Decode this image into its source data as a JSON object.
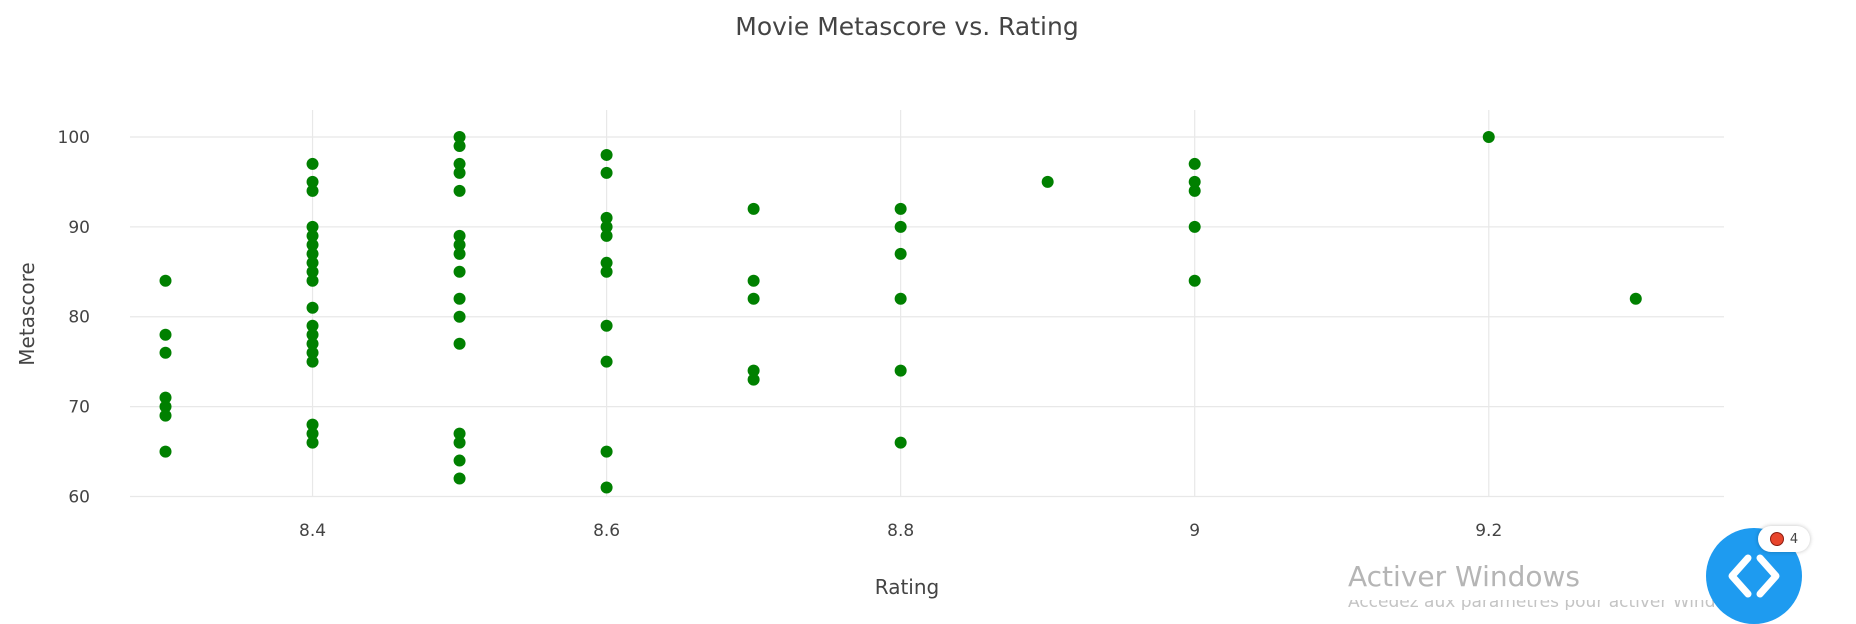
{
  "chart_data": {
    "type": "scatter",
    "title": "Movie Metascore vs. Rating",
    "xlabel": "Rating",
    "ylabel": "Metascore",
    "xlim": [
      8.25,
      9.36
    ],
    "ylim": [
      58.5,
      103
    ],
    "x_ticks": [
      8.4,
      8.6,
      8.8,
      9,
      9.2
    ],
    "x_tick_labels": [
      "8.4",
      "8.6",
      "8.8",
      "9",
      "9.2"
    ],
    "y_ticks": [
      60,
      70,
      80,
      90,
      100
    ],
    "y_tick_labels": [
      "60",
      "70",
      "80",
      "90",
      "100"
    ],
    "grid": true,
    "marker_color": "#008000",
    "points": [
      {
        "x": 8.3,
        "y": 84
      },
      {
        "x": 8.3,
        "y": 78
      },
      {
        "x": 8.3,
        "y": 76
      },
      {
        "x": 8.3,
        "y": 71
      },
      {
        "x": 8.3,
        "y": 70
      },
      {
        "x": 8.3,
        "y": 69
      },
      {
        "x": 8.3,
        "y": 65
      },
      {
        "x": 8.4,
        "y": 97
      },
      {
        "x": 8.4,
        "y": 95
      },
      {
        "x": 8.4,
        "y": 94
      },
      {
        "x": 8.4,
        "y": 90
      },
      {
        "x": 8.4,
        "y": 89
      },
      {
        "x": 8.4,
        "y": 88
      },
      {
        "x": 8.4,
        "y": 87
      },
      {
        "x": 8.4,
        "y": 86
      },
      {
        "x": 8.4,
        "y": 85
      },
      {
        "x": 8.4,
        "y": 84
      },
      {
        "x": 8.4,
        "y": 81
      },
      {
        "x": 8.4,
        "y": 79
      },
      {
        "x": 8.4,
        "y": 78
      },
      {
        "x": 8.4,
        "y": 77
      },
      {
        "x": 8.4,
        "y": 76
      },
      {
        "x": 8.4,
        "y": 75
      },
      {
        "x": 8.4,
        "y": 68
      },
      {
        "x": 8.4,
        "y": 67
      },
      {
        "x": 8.4,
        "y": 66
      },
      {
        "x": 8.5,
        "y": 100
      },
      {
        "x": 8.5,
        "y": 99
      },
      {
        "x": 8.5,
        "y": 97
      },
      {
        "x": 8.5,
        "y": 96
      },
      {
        "x": 8.5,
        "y": 94
      },
      {
        "x": 8.5,
        "y": 89
      },
      {
        "x": 8.5,
        "y": 88
      },
      {
        "x": 8.5,
        "y": 87
      },
      {
        "x": 8.5,
        "y": 85
      },
      {
        "x": 8.5,
        "y": 82
      },
      {
        "x": 8.5,
        "y": 80
      },
      {
        "x": 8.5,
        "y": 77
      },
      {
        "x": 8.5,
        "y": 67
      },
      {
        "x": 8.5,
        "y": 66
      },
      {
        "x": 8.5,
        "y": 64
      },
      {
        "x": 8.5,
        "y": 62
      },
      {
        "x": 8.6,
        "y": 98
      },
      {
        "x": 8.6,
        "y": 96
      },
      {
        "x": 8.6,
        "y": 91
      },
      {
        "x": 8.6,
        "y": 90
      },
      {
        "x": 8.6,
        "y": 89
      },
      {
        "x": 8.6,
        "y": 86
      },
      {
        "x": 8.6,
        "y": 85
      },
      {
        "x": 8.6,
        "y": 79
      },
      {
        "x": 8.6,
        "y": 75
      },
      {
        "x": 8.6,
        "y": 65
      },
      {
        "x": 8.6,
        "y": 61
      },
      {
        "x": 8.7,
        "y": 92
      },
      {
        "x": 8.7,
        "y": 84
      },
      {
        "x": 8.7,
        "y": 82
      },
      {
        "x": 8.7,
        "y": 74
      },
      {
        "x": 8.7,
        "y": 73
      },
      {
        "x": 8.8,
        "y": 92
      },
      {
        "x": 8.8,
        "y": 90
      },
      {
        "x": 8.8,
        "y": 87
      },
      {
        "x": 8.8,
        "y": 82
      },
      {
        "x": 8.8,
        "y": 74
      },
      {
        "x": 8.8,
        "y": 66
      },
      {
        "x": 8.9,
        "y": 95
      },
      {
        "x": 9.0,
        "y": 97
      },
      {
        "x": 9.0,
        "y": 95
      },
      {
        "x": 9.0,
        "y": 94
      },
      {
        "x": 9.0,
        "y": 90
      },
      {
        "x": 9.0,
        "y": 84
      },
      {
        "x": 9.2,
        "y": 100
      },
      {
        "x": 9.3,
        "y": 82
      }
    ]
  },
  "watermark": {
    "title": "Activer Windows",
    "subtitle": "Accédez aux paramètres pour activer Windows."
  },
  "fab": {
    "icon": "code-brackets-icon",
    "color": "#1e9bf0",
    "badge_count": "4",
    "badge_color": "#e8452c"
  }
}
